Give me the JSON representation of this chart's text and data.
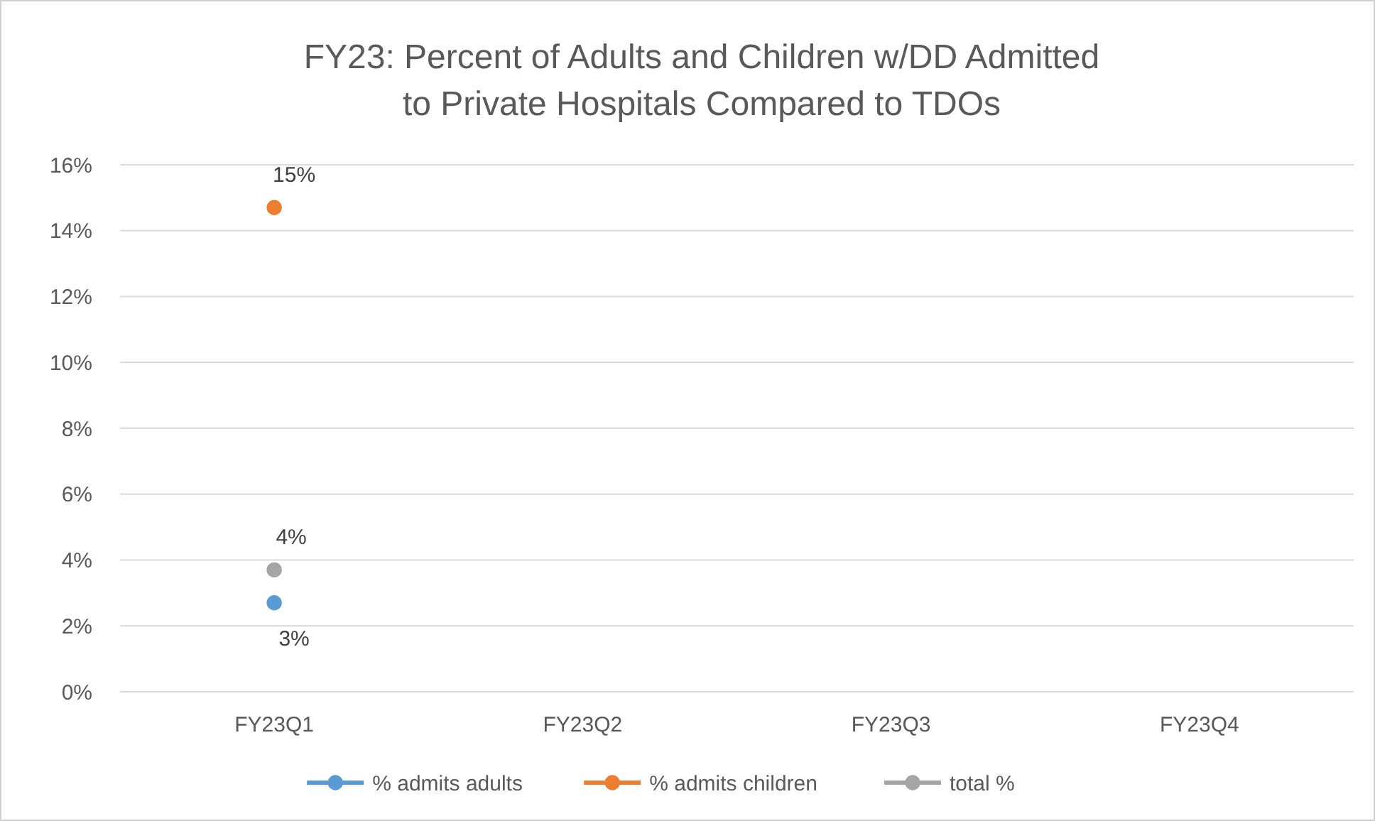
{
  "chart_data": {
    "type": "line",
    "title": "FY23: Percent of Adults and Children w/DD Admitted to Private Hospitals Compared to TDOs",
    "categories": [
      "FY23Q1",
      "FY23Q2",
      "FY23Q3",
      "FY23Q4"
    ],
    "series": [
      {
        "name": "% admits adults",
        "color": "#5b9bd5",
        "values": [
          2.7,
          null,
          null,
          null
        ],
        "value_labels": [
          "3%",
          null,
          null,
          null
        ]
      },
      {
        "name": "% admits children",
        "color": "#ed7d31",
        "values": [
          14.7,
          null,
          null,
          null
        ],
        "value_labels": [
          "15%",
          null,
          null,
          null
        ]
      },
      {
        "name": "total %",
        "color": "#a5a5a5",
        "values": [
          3.7,
          null,
          null,
          null
        ],
        "value_labels": [
          "4%",
          null,
          null,
          null
        ]
      }
    ],
    "ylim": [
      0,
      16
    ],
    "yticks": [
      {
        "value": 0,
        "label": "0%"
      },
      {
        "value": 2,
        "label": "2%"
      },
      {
        "value": 4,
        "label": "4%"
      },
      {
        "value": 6,
        "label": "6%"
      },
      {
        "value": 8,
        "label": "8%"
      },
      {
        "value": 10,
        "label": "10%"
      },
      {
        "value": 12,
        "label": "12%"
      },
      {
        "value": 14,
        "label": "14%"
      },
      {
        "value": 16,
        "label": "16%"
      }
    ],
    "grid": "y",
    "legend": "bottom",
    "marker": "circle",
    "line_style": "solid"
  }
}
